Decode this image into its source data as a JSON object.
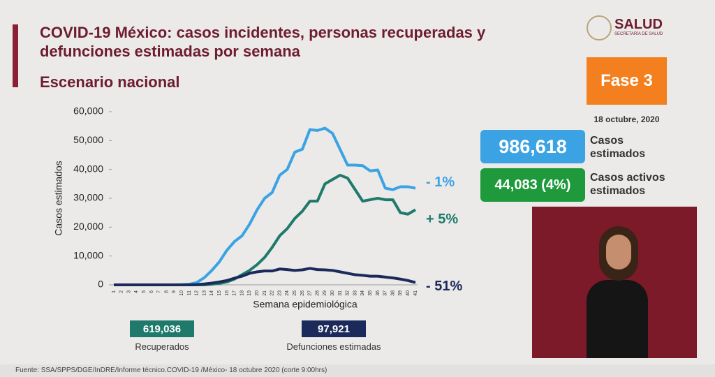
{
  "header": {
    "title": "COVID-19 México: casos incidentes, personas recuperadas y defunciones estimadas por semana",
    "subtitle": "Escenario nacional",
    "logo": "SALUD",
    "logo_sub": "SECRETARÍA DE SALUD"
  },
  "panel": {
    "phase": "Fase 3",
    "date": "18 octubre, 2020",
    "cases": "986,618",
    "cases_label": "Casos estimados",
    "active": "44,083 (4%)",
    "active_label": "Casos activos estimados"
  },
  "summary": [
    {
      "value": "619,036",
      "label": "Recuperados",
      "color": "#1f7a6c"
    },
    {
      "value": "97,921",
      "label": "Defunciones estimadas",
      "color": "#1b2a5a"
    }
  ],
  "footer": "Fuente: SSA/SPPS/DGE/InDRE/Informe técnico.COVID-19 /México- 18 octubre 2020 (corte 9:00hrs)",
  "chart_data": {
    "type": "line",
    "x_label": "Semana epidemiológica",
    "y_label": "Casos estimados",
    "categories": [
      "1",
      "2",
      "3",
      "4",
      "5",
      "6",
      "7",
      "8",
      "9",
      "10",
      "11",
      "12",
      "13",
      "14",
      "15",
      "16",
      "17",
      "18",
      "19",
      "20",
      "21",
      "22",
      "23",
      "24",
      "25",
      "26",
      "27",
      "28",
      "29",
      "30",
      "31",
      "32",
      "33",
      "34",
      "35",
      "36",
      "37",
      "38",
      "39",
      "40",
      "41"
    ],
    "ylim": [
      0,
      60000
    ],
    "yticks": [
      0,
      {
        "value": 10000,
        "label": "10,000"
      },
      {
        "value": 20000,
        "label": "20,000"
      },
      {
        "value": 30000,
        "label": "30,000"
      },
      {
        "value": 40000,
        "label": "40,000"
      },
      {
        "value": 50000,
        "label": "50,000"
      },
      {
        "value": 60000,
        "label": "60,000"
      }
    ],
    "series": [
      {
        "color": "#3ba3e4",
        "label": "- 1%",
        "values": [
          0,
          0,
          0,
          0,
          0,
          0,
          0,
          0,
          0,
          50,
          200,
          800,
          2500,
          5000,
          8000,
          12000,
          15000,
          17000,
          21000,
          26000,
          30000,
          32000,
          38000,
          40000,
          46000,
          47000,
          53800,
          53500,
          54300,
          52500,
          47000,
          41500,
          41500,
          41300,
          39500,
          39800,
          33500,
          33000,
          34000,
          34000,
          33500
        ]
      },
      {
        "color": "#1f7a6c",
        "label": "+ 5%",
        "values": [
          0,
          0,
          0,
          0,
          0,
          0,
          0,
          0,
          0,
          0,
          0,
          0,
          0,
          200,
          500,
          1000,
          2000,
          3500,
          5000,
          7000,
          9500,
          13000,
          17000,
          19500,
          23000,
          25500,
          29000,
          29000,
          35000,
          36500,
          38000,
          37000,
          33000,
          29000,
          29500,
          30000,
          29500,
          29500,
          25000,
          24500,
          26000
        ]
      },
      {
        "color": "#1b2a5a",
        "label": "- 51%",
        "values": [
          0,
          0,
          0,
          0,
          0,
          0,
          0,
          0,
          0,
          0,
          0,
          100,
          300,
          600,
          1000,
          1500,
          2300,
          3000,
          4000,
          4500,
          4800,
          4800,
          5500,
          5300,
          5000,
          5200,
          5700,
          5300,
          5200,
          5000,
          4500,
          4000,
          3500,
          3300,
          3000,
          3000,
          2700,
          2400,
          2000,
          1500,
          800
        ]
      }
    ]
  }
}
